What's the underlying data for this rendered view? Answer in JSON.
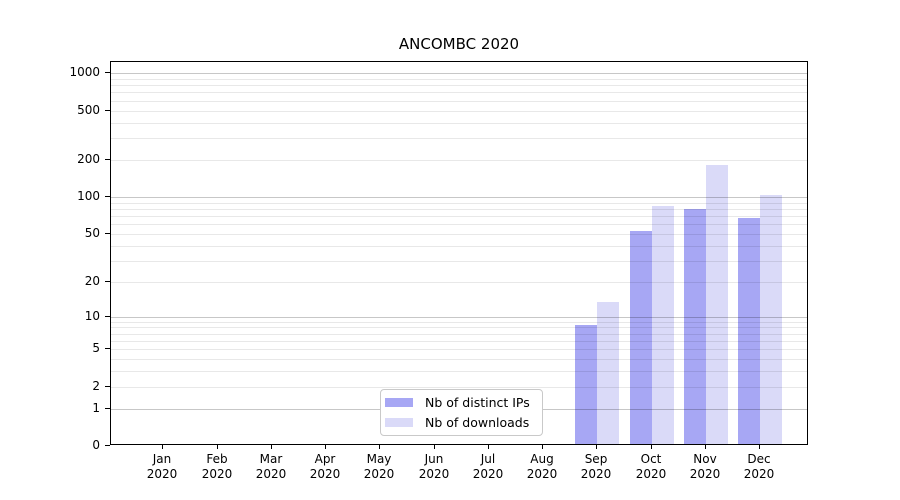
{
  "chart_data": {
    "type": "bar",
    "title": "ANCOMBC 2020",
    "year_label": "2020",
    "categories": [
      "Jan",
      "Feb",
      "Mar",
      "Apr",
      "May",
      "Jun",
      "Jul",
      "Aug",
      "Sep",
      "Oct",
      "Nov",
      "Dec"
    ],
    "series": [
      {
        "name": "Nb of distinct IPs",
        "color": "#a7a7f4",
        "values": [
          0,
          0,
          0,
          0,
          0,
          0,
          0,
          0,
          8,
          51,
          77,
          65
        ]
      },
      {
        "name": "Nb of downloads",
        "color": "#dadaf8",
        "values": [
          0,
          0,
          0,
          0,
          0,
          0,
          0,
          0,
          13,
          81,
          175,
          100
        ]
      }
    ],
    "y_axis": {
      "scale": "log1p",
      "tick_labels": [
        "0",
        "1",
        "2",
        "5",
        "10",
        "20",
        "50",
        "100",
        "200",
        "500",
        "1000"
      ],
      "major_gridlines": [
        1,
        10,
        100,
        1000
      ],
      "range_top": 1230
    },
    "legend": {
      "position": "inside-bottom-center"
    },
    "grid": true,
    "colors": {
      "spine": "#000000",
      "background": "#ffffff"
    }
  }
}
